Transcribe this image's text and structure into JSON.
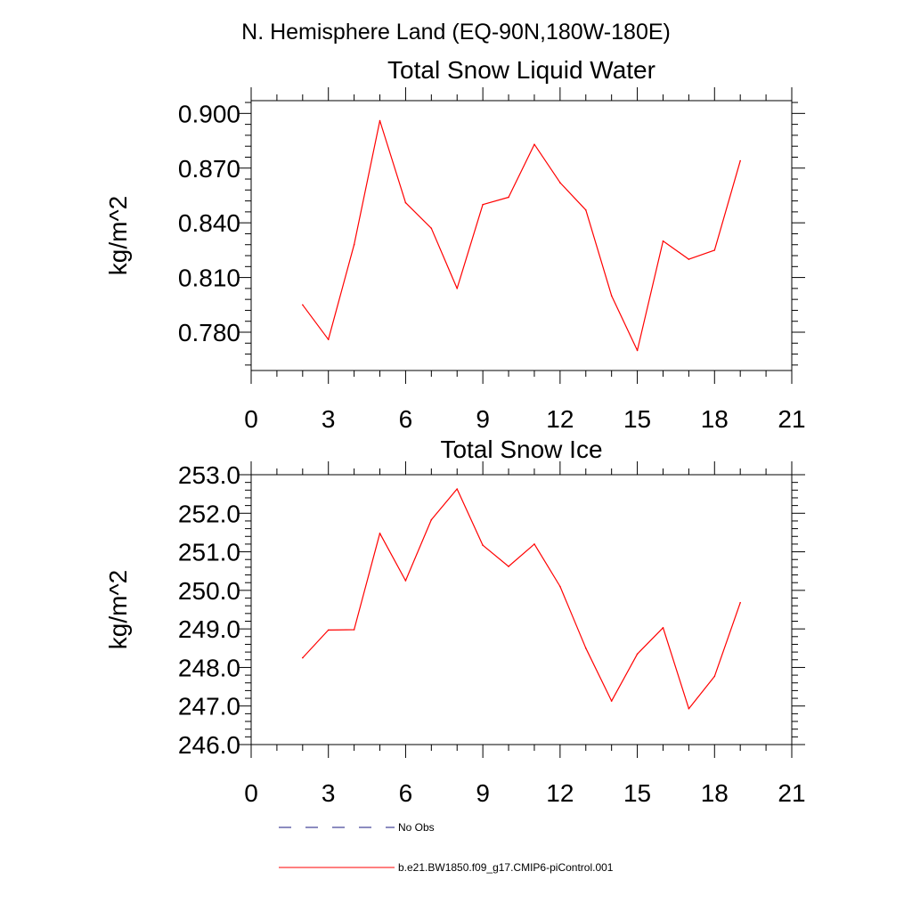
{
  "title": "N. Hemisphere Land (EQ-90N,180W-180E)",
  "chart_data": [
    {
      "type": "line",
      "title": "Total Snow Liquid Water",
      "xlabel": "",
      "ylabel": "kg/m^2",
      "xlim": [
        0,
        21
      ],
      "ylim": [
        0.759,
        0.907
      ],
      "xticks": [
        0,
        3,
        6,
        9,
        12,
        15,
        18,
        21
      ],
      "xtick_labels": [
        "0",
        "3",
        "6",
        "9",
        "12",
        "15",
        "18",
        "21"
      ],
      "yticks": [
        0.78,
        0.81,
        0.84,
        0.87,
        0.9
      ],
      "ytick_labels": [
        "0.780",
        "0.810",
        "0.840",
        "0.870",
        "0.900"
      ],
      "grid": false,
      "series": [
        {
          "name": "b.e21.BW1850.f09_g17.CMIP6-piControl.001",
          "color": "#ff0000",
          "x": [
            2,
            3,
            4,
            5,
            6,
            7,
            8,
            9,
            10,
            11,
            12,
            13,
            14,
            15,
            16,
            17,
            18,
            19
          ],
          "y": [
            0.795,
            0.776,
            0.828,
            0.896,
            0.851,
            0.837,
            0.804,
            0.85,
            0.854,
            0.883,
            0.862,
            0.847,
            0.8,
            0.77,
            0.83,
            0.82,
            0.825,
            0.874
          ]
        }
      ]
    },
    {
      "type": "line",
      "title": "Total Snow Ice",
      "xlabel": "",
      "ylabel": "kg/m^2",
      "xlim": [
        0,
        21
      ],
      "ylim": [
        246.0,
        253.0
      ],
      "xticks": [
        0,
        3,
        6,
        9,
        12,
        15,
        18,
        21
      ],
      "xtick_labels": [
        "0",
        "3",
        "6",
        "9",
        "12",
        "15",
        "18",
        "21"
      ],
      "yticks": [
        246,
        247,
        248,
        249,
        250,
        251,
        252,
        253
      ],
      "ytick_labels": [
        "246.0",
        "247.0",
        "248.0",
        "249.0",
        "250.0",
        "251.0",
        "252.0",
        "253.0"
      ],
      "grid": false,
      "series": [
        {
          "name": "b.e21.BW1850.f09_g17.CMIP6-piControl.001",
          "color": "#ff0000",
          "x": [
            2,
            3,
            4,
            5,
            6,
            7,
            8,
            9,
            10,
            11,
            12,
            13,
            14,
            15,
            16,
            17,
            18,
            19
          ],
          "y": [
            248.25,
            248.97,
            248.98,
            251.48,
            250.25,
            251.83,
            252.63,
            251.17,
            250.62,
            251.2,
            250.1,
            248.5,
            247.13,
            248.35,
            249.03,
            246.93,
            247.77,
            249.68
          ]
        }
      ]
    }
  ],
  "legend": {
    "placement": "bottom",
    "entries": [
      {
        "label": "No Obs",
        "color": "#1a1a80",
        "style": "dashed"
      },
      {
        "label": "b.e21.BW1850.f09_g17.CMIP6-piControl.001",
        "color": "#ff0000",
        "style": "solid"
      }
    ]
  }
}
